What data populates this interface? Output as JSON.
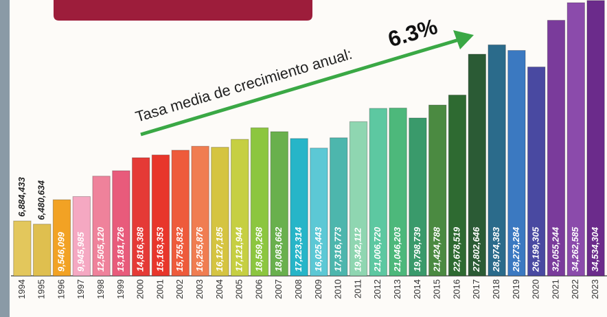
{
  "chart_data": {
    "type": "bar",
    "annotation": "Tasa media de crecimiento anual:",
    "annotation_value": "6.3%",
    "categories": [
      "1994",
      "1995",
      "1996",
      "1997",
      "1998",
      "1999",
      "2000",
      "2001",
      "2002",
      "2003",
      "2004",
      "2005",
      "2006",
      "2007",
      "2008",
      "2009",
      "2010",
      "2011",
      "2012",
      "2013",
      "2014",
      "2015",
      "2016",
      "2017",
      "2018",
      "2019",
      "2020",
      "2021",
      "2022",
      "2023"
    ],
    "values": [
      6884433,
      6480634,
      9546099,
      9945985,
      12505120,
      13181726,
      14816388,
      15163353,
      15755832,
      16255876,
      16127185,
      17121944,
      18569268,
      18083662,
      17223314,
      16025443,
      17316773,
      19342112,
      21006720,
      21046203,
      19798739,
      21424788,
      22678519,
      27802646,
      28974383,
      28273284,
      26199305,
      32055244,
      34262585,
      34534304
    ],
    "value_labels": [
      "6,884,433",
      "6,480,634",
      "9,546,099",
      "9,945,985",
      "12,505,120",
      "13,181,726",
      "14,816,388",
      "15,163,353",
      "15,755,832",
      "16,255,876",
      "16,127,185",
      "17,121,944",
      "18,569,268",
      "18,083,662",
      "17,223,314",
      "16,025,443",
      "17,316,773",
      "19,342,112",
      "21,006,720",
      "21,046,203",
      "19,798,739",
      "21,424,788",
      "22,678,519",
      "27,802,646",
      "28,974,383",
      "28,273,284",
      "26,199,305",
      "32,055,244",
      "34,262,585",
      "34,534,304"
    ],
    "colors": [
      "#e3c75c",
      "#dfbf4f",
      "#f2a224",
      "#f5a8c2",
      "#ef829b",
      "#e85b7b",
      "#e53a36",
      "#e8362b",
      "#ee5b3b",
      "#f07d51",
      "#d5c441",
      "#c6cf42",
      "#8cc63f",
      "#69b04d",
      "#27b5c8",
      "#5cc8d5",
      "#4db6ad",
      "#8fd6b1",
      "#5dc8a1",
      "#4db87b",
      "#3a9a6b",
      "#4b8a41",
      "#2e6a31",
      "#2b5b35",
      "#2b6b8b",
      "#3b79c1",
      "#4949a1",
      "#7a3b9b",
      "#8b4bab",
      "#6b2b8b"
    ],
    "ylim": [
      0,
      34600000
    ]
  }
}
